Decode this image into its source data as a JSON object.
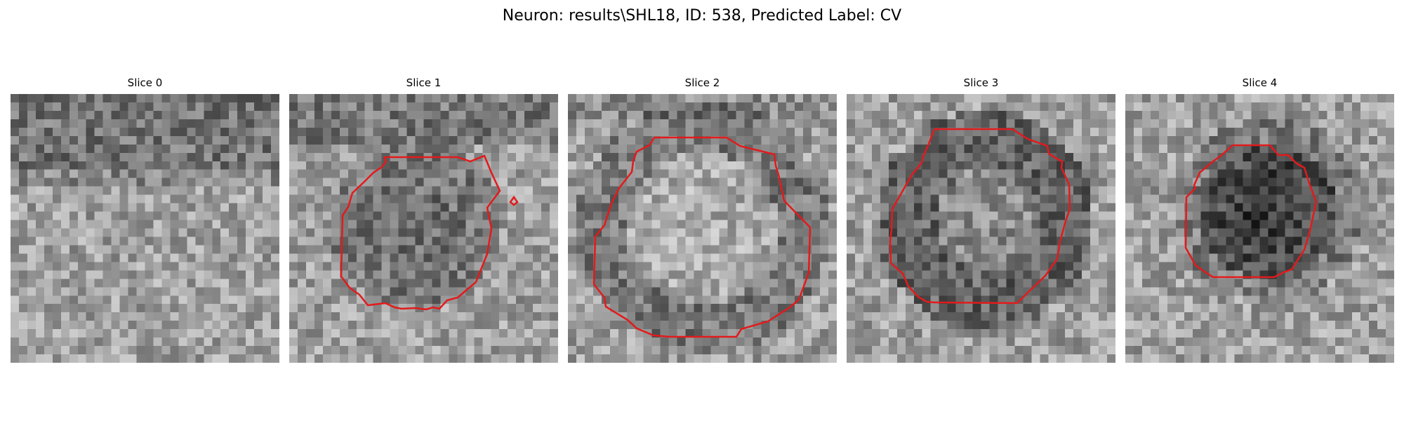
{
  "figure": {
    "title": "Neuron: results\\SHL18, ID: 538, Predicted Label: CV",
    "contour_color": "#e31a1c"
  },
  "slices": [
    {
      "title": "Slice 0",
      "has_contour": false
    },
    {
      "title": "Slice 1",
      "has_contour": true
    },
    {
      "title": "Slice 2",
      "has_contour": true
    },
    {
      "title": "Slice 3",
      "has_contour": true
    },
    {
      "title": "Slice 4",
      "has_contour": true
    }
  ]
}
